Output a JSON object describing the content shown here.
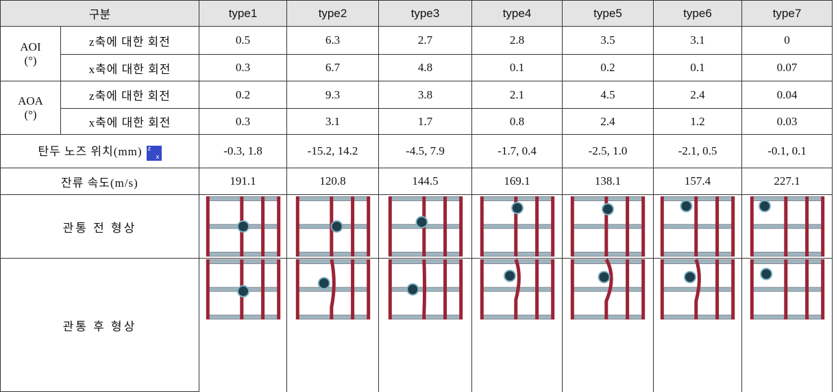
{
  "header": {
    "label": "구분",
    "types": [
      "type1",
      "type2",
      "type3",
      "type4",
      "type5",
      "type6",
      "type7"
    ]
  },
  "groups": [
    {
      "label": "AOI",
      "unit": "(°)",
      "rows": [
        {
          "label": "z축에 대한 회전",
          "values": [
            0.5,
            6.3,
            2.7,
            2.8,
            3.5,
            3.1,
            0
          ]
        },
        {
          "label": "x축에 대한 회전",
          "values": [
            0.3,
            6.7,
            4.8,
            0.1,
            0.2,
            0.1,
            0.07
          ]
        }
      ]
    },
    {
      "label": "AOA",
      "unit": "(°)",
      "rows": [
        {
          "label": "z축에 대한 회전",
          "values": [
            0.2,
            9.3,
            3.8,
            2.1,
            4.5,
            2.4,
            0.04
          ]
        },
        {
          "label": "x축에 대한 회전",
          "values": [
            0.3,
            3.1,
            1.7,
            0.8,
            2.4,
            1.2,
            0.03
          ]
        }
      ]
    }
  ],
  "nose": {
    "label": "탄두 노즈 위치(mm)",
    "icon_labels": [
      "z",
      "x"
    ],
    "values": [
      "-0.3, 1.8",
      "-15.2, 14.2",
      "-4.5, 7.9",
      "-1.7, 0.4",
      "-2.5, 1.0",
      "-2.1, 0.5",
      "-0.1, 0.1"
    ]
  },
  "speed": {
    "label": "잔류 속도(m/s)",
    "values": [
      191.1,
      120.8,
      144.5,
      169.1,
      138.1,
      157.4,
      227.1
    ]
  },
  "shapes": {
    "before": "관통 전 형상",
    "after": "관통 후 형상"
  }
}
